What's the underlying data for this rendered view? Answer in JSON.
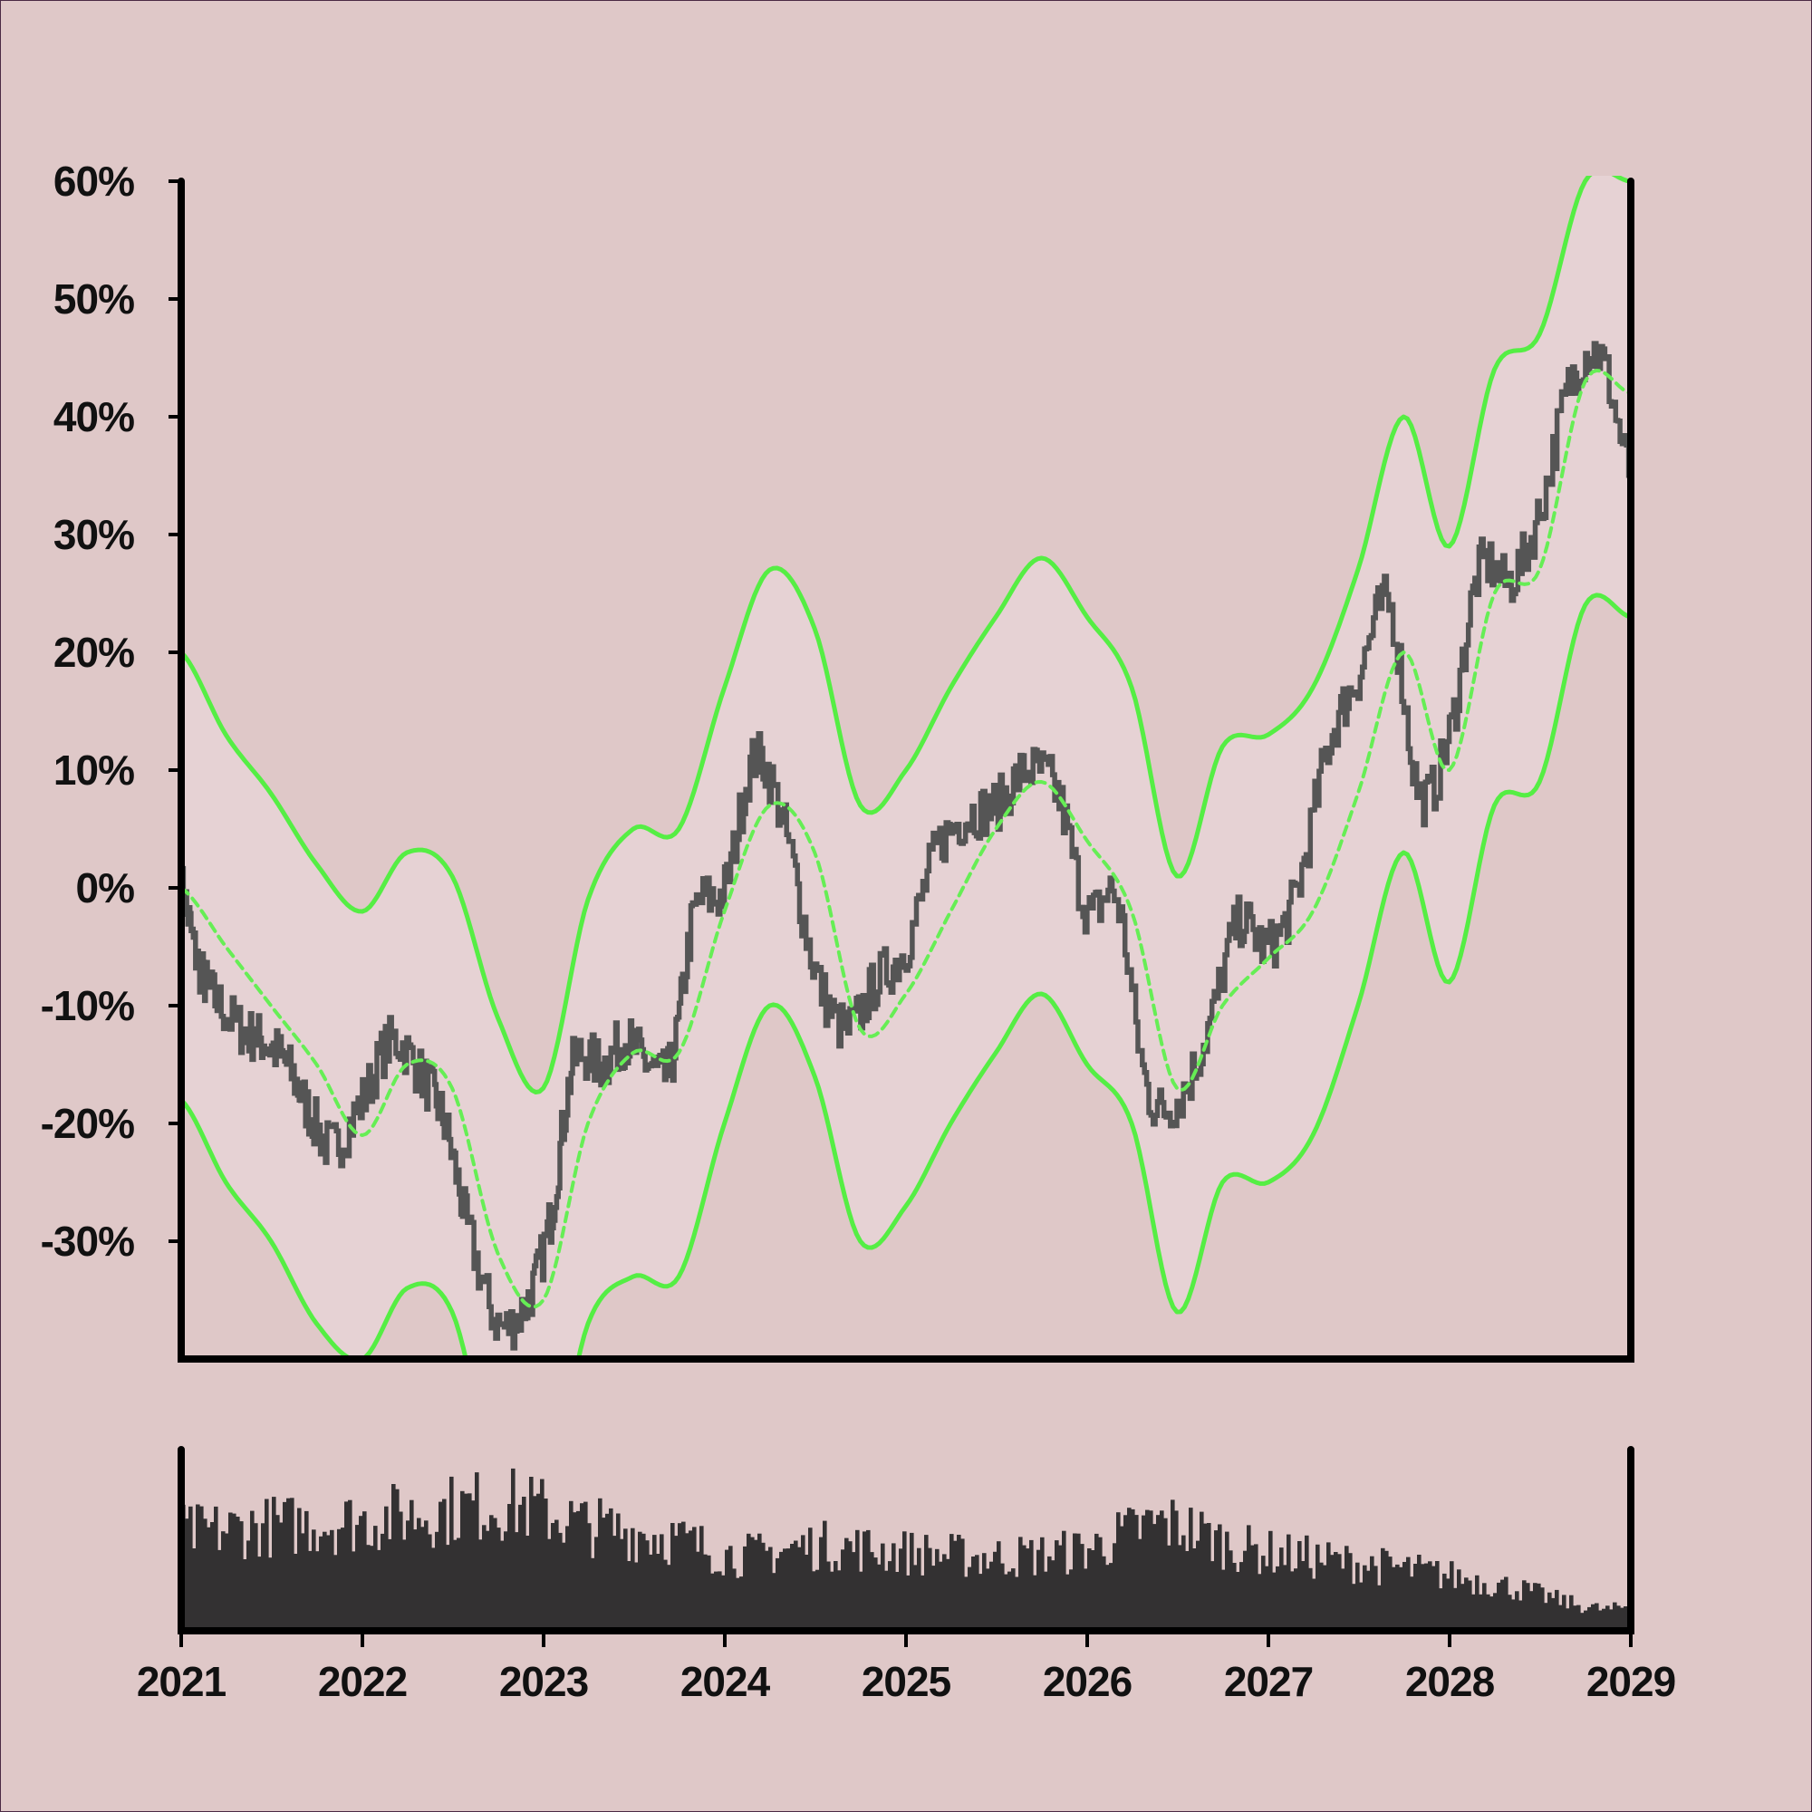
{
  "chart_data": [
    {
      "type": "line",
      "title": "",
      "xlabel": "",
      "ylabel": "",
      "x_range": [
        "2021-01-01",
        "2029-01-01"
      ],
      "ylim": [
        -40,
        60
      ],
      "y_unit": "%",
      "y_ticks": [
        {
          "value": 60,
          "label": "60%"
        },
        {
          "value": 50,
          "label": "50%"
        },
        {
          "value": 40,
          "label": "40%"
        },
        {
          "value": 30,
          "label": "30%"
        },
        {
          "value": 20,
          "label": "20%"
        },
        {
          "value": 10,
          "label": "10%"
        },
        {
          "value": 0,
          "label": "0%"
        },
        {
          "value": -10,
          "label": "-10%"
        },
        {
          "value": -20,
          "label": "-20%"
        },
        {
          "value": -30,
          "label": "-30%"
        }
      ],
      "grid": false,
      "legend": "none",
      "band_fill": "#e6d2d4",
      "series": [
        {
          "role": "price",
          "color": "#555555",
          "points": [
            [
              "2021-01-01",
              0
            ],
            [
              "2021-02-01",
              -6
            ],
            [
              "2021-03-01",
              -9
            ],
            [
              "2021-05-01",
              -12
            ],
            [
              "2021-06-15",
              -13
            ],
            [
              "2021-08-01",
              -15
            ],
            [
              "2021-09-15",
              -19
            ],
            [
              "2021-11-01",
              -22
            ],
            [
              "2022-01-01",
              -18
            ],
            [
              "2022-03-01",
              -13
            ],
            [
              "2022-05-01",
              -16
            ],
            [
              "2022-06-15",
              -20
            ],
            [
              "2022-08-01",
              -29
            ],
            [
              "2022-10-01",
              -37
            ],
            [
              "2022-12-01",
              -35
            ],
            [
              "2023-01-15",
              -28
            ],
            [
              "2023-03-01",
              -15
            ],
            [
              "2023-05-01",
              -15
            ],
            [
              "2023-06-15",
              -13
            ],
            [
              "2023-08-01",
              -15
            ],
            [
              "2023-09-15",
              -15
            ],
            [
              "2023-11-01",
              -2
            ],
            [
              "2024-01-01",
              0
            ],
            [
              "2024-03-01",
              11
            ],
            [
              "2024-05-01",
              5
            ],
            [
              "2024-07-01",
              -7
            ],
            [
              "2024-09-01",
              -12
            ],
            [
              "2024-11-01",
              -8
            ],
            [
              "2025-01-01",
              -5
            ],
            [
              "2025-03-01",
              3
            ],
            [
              "2025-05-01",
              6
            ],
            [
              "2025-07-01",
              7
            ],
            [
              "2025-09-01",
              10
            ],
            [
              "2025-11-01",
              8
            ],
            [
              "2026-01-01",
              -2
            ],
            [
              "2026-03-01",
              -1
            ],
            [
              "2026-05-01",
              -17
            ],
            [
              "2026-07-01",
              -18
            ],
            [
              "2026-09-01",
              -12
            ],
            [
              "2026-11-01",
              -3
            ],
            [
              "2027-01-01",
              -5
            ],
            [
              "2027-03-01",
              0
            ],
            [
              "2027-05-01",
              12
            ],
            [
              "2027-07-01",
              18
            ],
            [
              "2027-09-01",
              24
            ],
            [
              "2027-11-01",
              8
            ],
            [
              "2028-01-01",
              13
            ],
            [
              "2028-03-01",
              27
            ],
            [
              "2028-05-01",
              26
            ],
            [
              "2028-07-01",
              32
            ],
            [
              "2028-09-01",
              43
            ],
            [
              "2028-11-01",
              45
            ],
            [
              "2029-01-01",
              35
            ]
          ]
        },
        {
          "role": "moving-average",
          "color": "#66ee55",
          "dashed": true,
          "points": [
            [
              "2021-01-01",
              0
            ],
            [
              "2021-04-01",
              -5
            ],
            [
              "2021-07-01",
              -10
            ],
            [
              "2021-10-01",
              -15
            ],
            [
              "2022-01-01",
              -21
            ],
            [
              "2022-04-01",
              -15
            ],
            [
              "2022-07-01",
              -17
            ],
            [
              "2022-10-01",
              -31
            ],
            [
              "2023-01-01",
              -35
            ],
            [
              "2023-04-01",
              -20
            ],
            [
              "2023-07-01",
              -14
            ],
            [
              "2023-10-01",
              -14
            ],
            [
              "2024-01-01",
              -2
            ],
            [
              "2024-04-01",
              7
            ],
            [
              "2024-07-01",
              3
            ],
            [
              "2024-10-01",
              -12
            ],
            [
              "2025-01-01",
              -9
            ],
            [
              "2025-04-01",
              -2
            ],
            [
              "2025-07-01",
              5
            ],
            [
              "2025-10-01",
              9
            ],
            [
              "2026-01-01",
              4
            ],
            [
              "2026-04-01",
              -2
            ],
            [
              "2026-07-01",
              -17
            ],
            [
              "2026-10-01",
              -10
            ],
            [
              "2027-01-01",
              -6
            ],
            [
              "2027-04-01",
              -2
            ],
            [
              "2027-07-01",
              8
            ],
            [
              "2027-10-01",
              20
            ],
            [
              "2028-01-01",
              10
            ],
            [
              "2028-04-01",
              25
            ],
            [
              "2028-07-01",
              27
            ],
            [
              "2028-10-01",
              43
            ],
            [
              "2029-01-01",
              42
            ]
          ]
        },
        {
          "role": "upper-band",
          "color": "#55ee44",
          "points": [
            [
              "2021-01-01",
              20
            ],
            [
              "2021-04-01",
              13
            ],
            [
              "2021-07-01",
              8
            ],
            [
              "2021-10-01",
              2
            ],
            [
              "2022-01-01",
              -2
            ],
            [
              "2022-04-01",
              3
            ],
            [
              "2022-07-01",
              1
            ],
            [
              "2022-10-01",
              -11
            ],
            [
              "2023-01-01",
              -17
            ],
            [
              "2023-04-01",
              -1
            ],
            [
              "2023-07-01",
              5
            ],
            [
              "2023-10-01",
              5
            ],
            [
              "2024-01-01",
              17
            ],
            [
              "2024-04-01",
              27
            ],
            [
              "2024-07-01",
              22
            ],
            [
              "2024-10-01",
              7
            ],
            [
              "2025-01-01",
              10
            ],
            [
              "2025-04-01",
              17
            ],
            [
              "2025-07-01",
              23
            ],
            [
              "2025-10-01",
              28
            ],
            [
              "2026-01-01",
              23
            ],
            [
              "2026-04-01",
              17
            ],
            [
              "2026-07-01",
              1
            ],
            [
              "2026-10-01",
              12
            ],
            [
              "2027-01-01",
              13
            ],
            [
              "2027-04-01",
              17
            ],
            [
              "2027-07-01",
              27
            ],
            [
              "2027-10-01",
              40
            ],
            [
              "2028-01-01",
              29
            ],
            [
              "2028-04-01",
              44
            ],
            [
              "2028-07-01",
              47
            ],
            [
              "2028-10-01",
              60
            ],
            [
              "2029-01-01",
              60
            ]
          ]
        },
        {
          "role": "lower-band",
          "color": "#55ee44",
          "points": [
            [
              "2021-01-01",
              -18
            ],
            [
              "2021-04-01",
              -25
            ],
            [
              "2021-07-01",
              -30
            ],
            [
              "2021-10-01",
              -37
            ],
            [
              "2022-01-01",
              -40
            ],
            [
              "2022-04-01",
              -34
            ],
            [
              "2022-07-01",
              -36
            ],
            [
              "2022-10-01",
              -51
            ],
            [
              "2023-01-01",
              -53
            ],
            [
              "2023-04-01",
              -37
            ],
            [
              "2023-07-01",
              -33
            ],
            [
              "2023-10-01",
              -33
            ],
            [
              "2024-01-01",
              -20
            ],
            [
              "2024-04-01",
              -10
            ],
            [
              "2024-07-01",
              -16
            ],
            [
              "2024-10-01",
              -30
            ],
            [
              "2025-01-01",
              -27
            ],
            [
              "2025-04-01",
              -20
            ],
            [
              "2025-07-01",
              -14
            ],
            [
              "2025-10-01",
              -9
            ],
            [
              "2026-01-01",
              -15
            ],
            [
              "2026-04-01",
              -20
            ],
            [
              "2026-07-01",
              -36
            ],
            [
              "2026-10-01",
              -25
            ],
            [
              "2027-01-01",
              -25
            ],
            [
              "2027-04-01",
              -21
            ],
            [
              "2027-07-01",
              -10
            ],
            [
              "2027-10-01",
              3
            ],
            [
              "2028-01-01",
              -8
            ],
            [
              "2028-04-01",
              7
            ],
            [
              "2028-07-01",
              9
            ],
            [
              "2028-10-01",
              24
            ],
            [
              "2029-01-01",
              23
            ]
          ]
        }
      ]
    },
    {
      "type": "bar",
      "title": "",
      "color": "#333132",
      "x_range": [
        "2021-01-01",
        "2029-01-01"
      ],
      "x_ticks": [
        "2021",
        "2022",
        "2023",
        "2024",
        "2025",
        "2026",
        "2027",
        "2028",
        "2029"
      ],
      "ylim": [
        0,
        100
      ],
      "volume_envelope": [
        [
          "2021-01-01",
          62
        ],
        [
          "2021-06-01",
          66
        ],
        [
          "2022-01-01",
          70
        ],
        [
          "2022-06-01",
          76
        ],
        [
          "2022-11-01",
          80
        ],
        [
          "2023-04-01",
          67
        ],
        [
          "2023-09-01",
          60
        ],
        [
          "2024-02-01",
          48
        ],
        [
          "2024-07-01",
          54
        ],
        [
          "2025-01-01",
          50
        ],
        [
          "2025-07-01",
          47
        ],
        [
          "2026-01-01",
          52
        ],
        [
          "2026-06-01",
          68
        ],
        [
          "2026-11-01",
          53
        ],
        [
          "2027-05-01",
          45
        ],
        [
          "2027-11-01",
          38
        ],
        [
          "2028-05-01",
          28
        ],
        [
          "2028-11-01",
          14
        ],
        [
          "2029-01-01",
          16
        ]
      ]
    }
  ]
}
